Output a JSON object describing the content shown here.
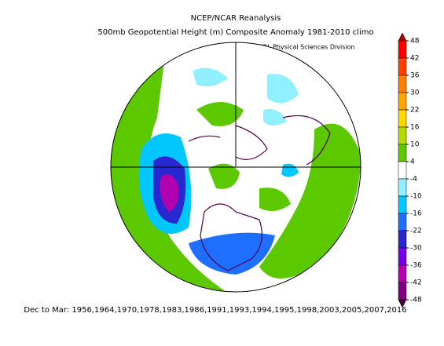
{
  "header": {
    "title": "NCEP/NCAR Reanalysis",
    "subtitle": "500mb Geopotential Height (m) Composite Anomaly 1981-2010 climo",
    "credit": "NOAA/ESRL Physical Sciences Division"
  },
  "colorbar": {
    "ticks": [
      48,
      42,
      36,
      30,
      22,
      16,
      10,
      4,
      -4,
      -10,
      -16,
      -22,
      -30,
      -36,
      -42,
      -48
    ],
    "colors": [
      "#b00000",
      "#ff0000",
      "#ff4000",
      "#ff8000",
      "#ffa500",
      "#ffd700",
      "#b4dc00",
      "#5cc800",
      "#ffffff",
      "#90f0ff",
      "#00c8ff",
      "#1e6eff",
      "#2828d0",
      "#7800e6",
      "#b000b0",
      "#800080",
      "#400040"
    ]
  },
  "footer": {
    "text": "Dec to Mar: 1956,1964,1970,1978,1983,1986,1991,1993,1994,1995,1998,2003,2005,2007,2016"
  }
}
